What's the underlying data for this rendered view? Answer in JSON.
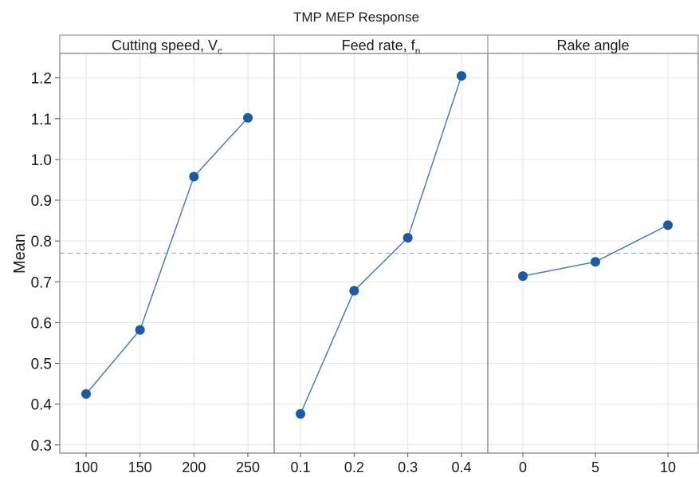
{
  "chart_data": {
    "type": "line",
    "title": "TMP MEP Response",
    "ylabel": "Mean",
    "ylim": [
      0.28,
      1.26
    ],
    "yticks": [
      "0.3",
      "0.4",
      "0.5",
      "0.6",
      "0.7",
      "0.8",
      "0.9",
      "1.0",
      "1.1",
      "1.2"
    ],
    "grand_mean": 0.77,
    "grid": true,
    "colors": {
      "line": "#4a7fb5",
      "marker": "#1c5aa3",
      "reference_line": "#b0b0b0",
      "grid": "#e6e6e6",
      "frame": "#808080"
    },
    "panels": [
      {
        "header_main": "Cutting speed, V",
        "header_sub": "c",
        "x": [
          "100",
          "150",
          "200",
          "250"
        ],
        "values": [
          0.425,
          0.582,
          0.958,
          1.102
        ]
      },
      {
        "header_main": "Feed rate, f",
        "header_sub": "n",
        "x": [
          "0.1",
          "0.2",
          "0.3",
          "0.4"
        ],
        "values": [
          0.376,
          0.678,
          0.808,
          1.205
        ]
      },
      {
        "header_main": "Rake angle",
        "header_sub": "",
        "x": [
          "0",
          "5",
          "10"
        ],
        "values": [
          0.714,
          0.749,
          0.839
        ]
      }
    ]
  }
}
